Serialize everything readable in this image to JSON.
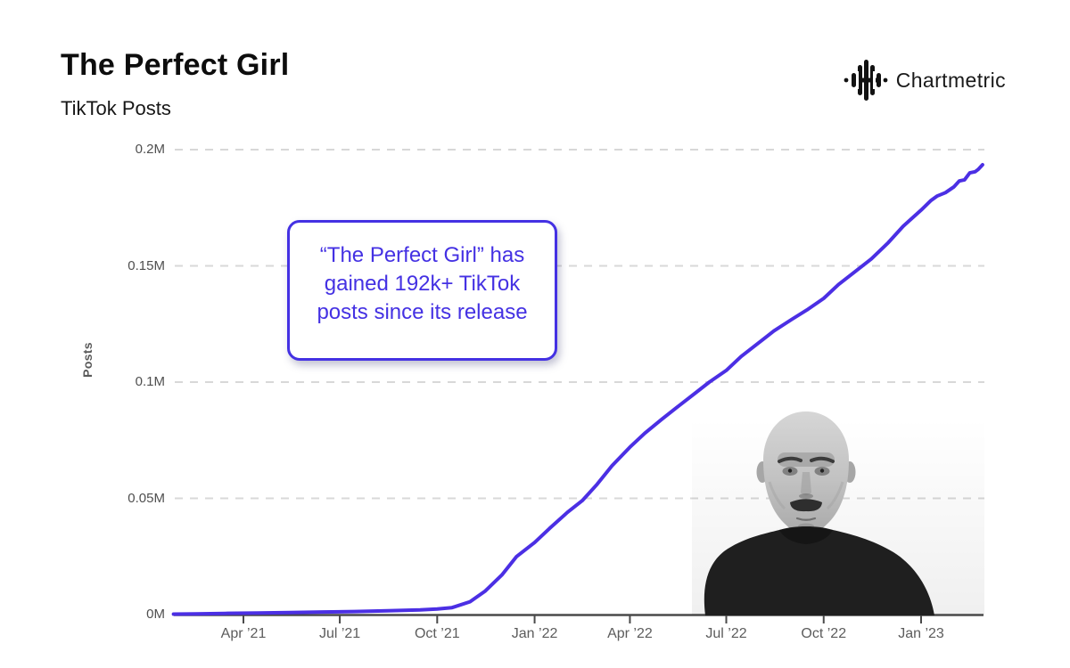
{
  "header": {
    "title": "The Perfect Girl",
    "subtitle": "TikTok Posts"
  },
  "logo": {
    "text": "Chartmetric",
    "icon": "waveform-icon"
  },
  "annotation": {
    "lines": [
      "“The Perfect Girl” has",
      "gained 192k+ TikTok",
      "posts since its release"
    ]
  },
  "colors": {
    "accent": "#4431E3",
    "series_line": "#4B2FE4",
    "gridline": "#D8D8D8",
    "axis": "#4A4A4A",
    "tick_label": "#5C5C5C"
  },
  "chart_data": {
    "type": "line",
    "title": "The Perfect Girl",
    "subtitle": "TikTok Posts",
    "ylabel": "Posts",
    "unit": "millions of TikTok posts",
    "ylim": [
      0,
      0.2
    ],
    "x_range": [
      "2021-01-25",
      "2023-02-28"
    ],
    "grid": "horizontal-dashed",
    "legend": "none",
    "y_ticks": [
      {
        "label": "0M",
        "value": 0
      },
      {
        "label": "0.05M",
        "value": 0.05
      },
      {
        "label": "0.1M",
        "value": 0.1
      },
      {
        "label": "0.15M",
        "value": 0.15
      },
      {
        "label": "0.2M",
        "value": 0.2
      }
    ],
    "x_ticks": [
      {
        "label": "Apr ’21",
        "date": "2021-04-01"
      },
      {
        "label": "Jul ’21",
        "date": "2021-07-01"
      },
      {
        "label": "Oct ’21",
        "date": "2021-10-01"
      },
      {
        "label": "Jan ’22",
        "date": "2022-01-01"
      },
      {
        "label": "Apr ’22",
        "date": "2022-04-01"
      },
      {
        "label": "Jul ’22",
        "date": "2022-07-01"
      },
      {
        "label": "Oct ’22",
        "date": "2022-10-01"
      },
      {
        "label": "Jan ’23",
        "date": "2023-01-01"
      }
    ],
    "series": [
      {
        "name": "TikTok Posts (cumulative, millions)",
        "color": "#4B2FE4",
        "points": [
          [
            "2021-01-25",
            0.0002
          ],
          [
            "2021-02-15",
            0.0003
          ],
          [
            "2021-03-15",
            0.0005
          ],
          [
            "2021-04-15",
            0.0007
          ],
          [
            "2021-05-15",
            0.0009
          ],
          [
            "2021-06-15",
            0.0011
          ],
          [
            "2021-07-15",
            0.0013
          ],
          [
            "2021-08-15",
            0.0016
          ],
          [
            "2021-09-15",
            0.002
          ],
          [
            "2021-10-01",
            0.0024
          ],
          [
            "2021-10-15",
            0.003
          ],
          [
            "2021-11-01",
            0.0055
          ],
          [
            "2021-11-15",
            0.01
          ],
          [
            "2021-12-01",
            0.017
          ],
          [
            "2021-12-15",
            0.025
          ],
          [
            "2022-01-01",
            0.031
          ],
          [
            "2022-01-15",
            0.037
          ],
          [
            "2022-02-01",
            0.044
          ],
          [
            "2022-02-15",
            0.049
          ],
          [
            "2022-03-01",
            0.056
          ],
          [
            "2022-03-15",
            0.064
          ],
          [
            "2022-04-01",
            0.072
          ],
          [
            "2022-04-15",
            0.078
          ],
          [
            "2022-05-01",
            0.084
          ],
          [
            "2022-05-15",
            0.089
          ],
          [
            "2022-06-01",
            0.095
          ],
          [
            "2022-06-15",
            0.1
          ],
          [
            "2022-07-01",
            0.105
          ],
          [
            "2022-07-15",
            0.111
          ],
          [
            "2022-08-01",
            0.117
          ],
          [
            "2022-08-15",
            0.122
          ],
          [
            "2022-09-01",
            0.127
          ],
          [
            "2022-09-15",
            0.131
          ],
          [
            "2022-10-01",
            0.136
          ],
          [
            "2022-10-15",
            0.142
          ],
          [
            "2022-11-01",
            0.148
          ],
          [
            "2022-11-15",
            0.153
          ],
          [
            "2022-12-01",
            0.16
          ],
          [
            "2022-12-15",
            0.167
          ],
          [
            "2023-01-01",
            0.174
          ],
          [
            "2023-01-10",
            0.178
          ],
          [
            "2023-01-16",
            0.18
          ],
          [
            "2023-01-24",
            0.1815
          ],
          [
            "2023-02-01",
            0.184
          ],
          [
            "2023-02-06",
            0.1865
          ],
          [
            "2023-02-11",
            0.187
          ],
          [
            "2023-02-16",
            0.19
          ],
          [
            "2023-02-21",
            0.1905
          ],
          [
            "2023-02-24",
            0.1915
          ],
          [
            "2023-02-28",
            0.1935
          ]
        ]
      }
    ]
  }
}
